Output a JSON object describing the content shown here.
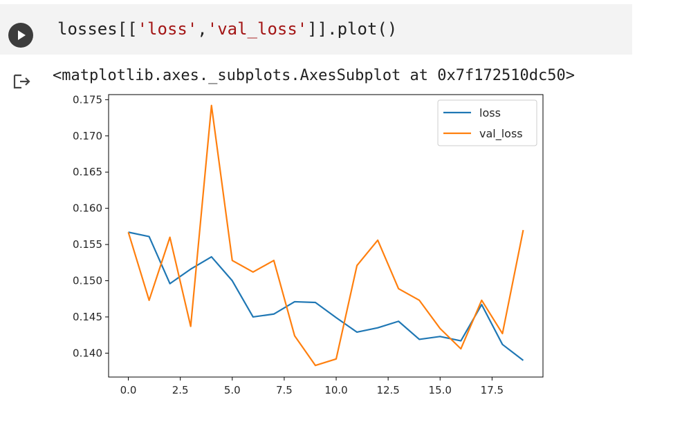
{
  "cell": {
    "code_prefix": "losses[[",
    "code_str1": "'loss'",
    "code_comma": ",",
    "code_str2": "'val_loss'",
    "code_suffix": "]].plot()",
    "run_icon": "play-icon"
  },
  "output": {
    "icon": "output-arrow-icon",
    "text": "<matplotlib.axes._subplots.AxesSubplot at 0x7f172510dc50>"
  },
  "chart_data": {
    "type": "line",
    "title": "",
    "xlabel": "",
    "ylabel": "",
    "xlim": [
      -0.95,
      19.95
    ],
    "ylim": [
      0.1367,
      0.1757
    ],
    "x": [
      0,
      1,
      2,
      3,
      4,
      5,
      6,
      7,
      8,
      9,
      10,
      11,
      12,
      13,
      14,
      15,
      16,
      17,
      18,
      19
    ],
    "x_ticks": [
      0.0,
      2.5,
      5.0,
      7.5,
      10.0,
      12.5,
      15.0,
      17.5
    ],
    "x_tick_labels": [
      "0.0",
      "2.5",
      "5.0",
      "7.5",
      "10.0",
      "12.5",
      "15.0",
      "17.5"
    ],
    "y_ticks": [
      0.14,
      0.145,
      0.15,
      0.155,
      0.16,
      0.165,
      0.17,
      0.175
    ],
    "y_tick_labels": [
      "0.140",
      "0.145",
      "0.150",
      "0.155",
      "0.160",
      "0.165",
      "0.170",
      "0.175"
    ],
    "grid": false,
    "legend_position": "top-right",
    "series": [
      {
        "name": "loss",
        "color": "#1f77b4",
        "values": [
          0.1567,
          0.1561,
          0.1496,
          0.1516,
          0.1533,
          0.15,
          0.145,
          0.1454,
          0.1471,
          0.147,
          0.1449,
          0.1429,
          0.1435,
          0.1444,
          0.1419,
          0.1423,
          0.1417,
          0.1467,
          0.1412,
          0.139
        ]
      },
      {
        "name": "val_loss",
        "color": "#ff7f0e",
        "values": [
          0.1567,
          0.1473,
          0.156,
          0.1437,
          0.1742,
          0.1528,
          0.1512,
          0.1528,
          0.1424,
          0.1383,
          0.1392,
          0.1521,
          0.1556,
          0.1489,
          0.1473,
          0.1434,
          0.1406,
          0.1473,
          0.1427,
          0.157
        ]
      }
    ]
  }
}
